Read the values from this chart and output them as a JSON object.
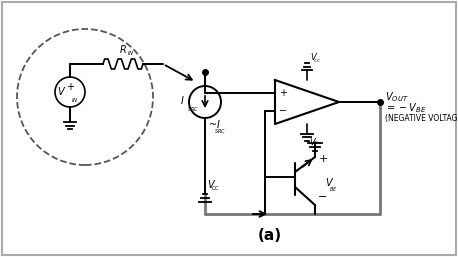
{
  "bg_color": "white",
  "border_color": "#999999",
  "line_color": "black",
  "gray_color": "#777777",
  "title": "(a)",
  "negative_voltage_text": "(NEGATIVE VOLTAGE)"
}
